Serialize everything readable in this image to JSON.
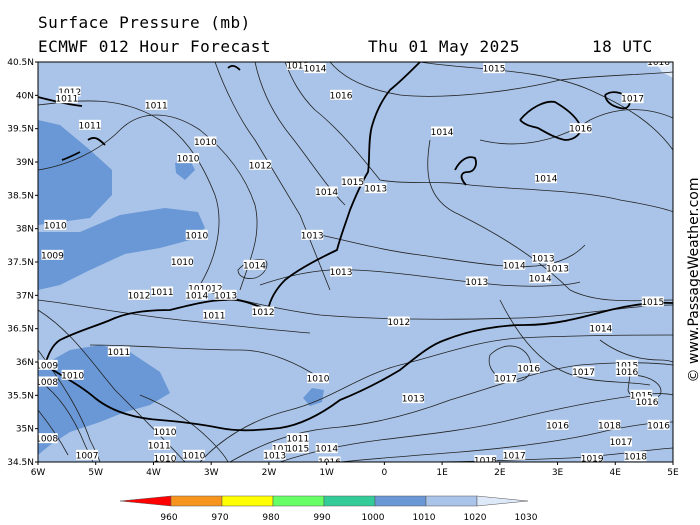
{
  "header": {
    "title": "Surface Pressure (mb)",
    "subtitle": "ECMWF 012 Hour Forecast",
    "date": "Thu 01 May 2025",
    "time": "18 UTC"
  },
  "site": "© www.PassageWeather.com",
  "map": {
    "lat_labels": [
      "40.5N",
      "40N",
      "39.5N",
      "39N",
      "38.5N",
      "38N",
      "37.5N",
      "37N",
      "36.5N",
      "36N",
      "35.5N",
      "35N",
      "34.5N"
    ],
    "lon_labels": [
      "6W",
      "5W",
      "4W",
      "3W",
      "2W",
      "1W",
      "0",
      "1E",
      "2E",
      "3E",
      "4E",
      "5E"
    ],
    "colors": {
      "sea_1010": "#6a98d6",
      "sea_1020": "#a9c4e8",
      "land_outline": "#000000",
      "isobar": "#222222"
    },
    "isobar_labels": [
      {
        "text": "1012",
        "lon": -5.45,
        "lat": 40.05
      },
      {
        "text": "1011",
        "lon": -5.5,
        "lat": 39.95
      },
      {
        "text": "1011",
        "lon": -5.1,
        "lat": 39.55
      },
      {
        "text": "1011",
        "lon": -3.95,
        "lat": 39.85
      },
      {
        "text": "1010",
        "lon": -3.1,
        "lat": 39.3
      },
      {
        "text": "1010",
        "lon": -3.4,
        "lat": 39.05
      },
      {
        "text": "1012",
        "lon": -2.15,
        "lat": 38.95
      },
      {
        "text": "1015",
        "lon": -1.5,
        "lat": 40.45
      },
      {
        "text": "1014",
        "lon": -1.2,
        "lat": 40.4
      },
      {
        "text": "1016",
        "lon": -0.75,
        "lat": 40.0
      },
      {
        "text": "1015",
        "lon": 1.9,
        "lat": 40.4
      },
      {
        "text": "1017",
        "lon": 4.3,
        "lat": 39.95
      },
      {
        "text": "1016",
        "lon": 3.4,
        "lat": 39.5
      },
      {
        "text": "1014",
        "lon": 1.0,
        "lat": 39.45
      },
      {
        "text": "1014",
        "lon": 2.8,
        "lat": 38.75
      },
      {
        "text": "1015",
        "lon": -0.55,
        "lat": 38.7
      },
      {
        "text": "1014",
        "lon": -1.0,
        "lat": 38.55
      },
      {
        "text": "1013",
        "lon": -0.15,
        "lat": 38.6
      },
      {
        "text": "1010",
        "lon": -5.7,
        "lat": 38.05
      },
      {
        "text": "1010",
        "lon": -3.25,
        "lat": 37.9
      },
      {
        "text": "1013",
        "lon": -1.25,
        "lat": 37.9
      },
      {
        "text": "1009",
        "lon": -5.75,
        "lat": 37.6
      },
      {
        "text": "1010",
        "lon": -3.5,
        "lat": 37.5
      },
      {
        "text": "1014",
        "lon": -2.25,
        "lat": 37.45
      },
      {
        "text": "1013",
        "lon": -0.75,
        "lat": 37.35
      },
      {
        "text": "1014",
        "lon": 2.25,
        "lat": 37.45
      },
      {
        "text": "1013",
        "lon": 2.75,
        "lat": 37.55
      },
      {
        "text": "1013",
        "lon": 3.0,
        "lat": 37.4
      },
      {
        "text": "1014",
        "lon": 2.7,
        "lat": 37.25
      },
      {
        "text": "1013",
        "lon": 1.6,
        "lat": 37.2
      },
      {
        "text": "1012",
        "lon": -4.25,
        "lat": 37.0
      },
      {
        "text": "1011",
        "lon": -3.85,
        "lat": 37.05
      },
      {
        "text": "1013",
        "lon": -3.2,
        "lat": 37.1
      },
      {
        "text": "1012",
        "lon": -3.0,
        "lat": 37.1
      },
      {
        "text": "1014",
        "lon": -3.25,
        "lat": 37.0
      },
      {
        "text": "1013",
        "lon": -2.75,
        "lat": 37.0
      },
      {
        "text": "1011",
        "lon": -2.95,
        "lat": 36.7
      },
      {
        "text": "1012",
        "lon": -2.1,
        "lat": 36.75
      },
      {
        "text": "1012",
        "lon": 0.25,
        "lat": 36.6
      },
      {
        "text": "1015",
        "lon": 4.65,
        "lat": 36.9
      },
      {
        "text": "1014",
        "lon": 3.75,
        "lat": 36.5
      },
      {
        "text": "1011",
        "lon": -4.6,
        "lat": 36.15
      },
      {
        "text": "1009",
        "lon": -5.85,
        "lat": 35.95
      },
      {
        "text": "1010",
        "lon": -5.4,
        "lat": 35.8
      },
      {
        "text": "1008",
        "lon": -5.85,
        "lat": 35.7
      },
      {
        "text": "1010",
        "lon": -1.15,
        "lat": 35.75
      },
      {
        "text": "1013",
        "lon": 0.5,
        "lat": 35.45
      },
      {
        "text": "1016",
        "lon": 2.5,
        "lat": 35.9
      },
      {
        "text": "1017",
        "lon": 2.1,
        "lat": 35.75
      },
      {
        "text": "1017",
        "lon": 3.45,
        "lat": 35.85
      },
      {
        "text": "1015",
        "lon": 4.2,
        "lat": 35.95
      },
      {
        "text": "1016",
        "lon": 4.2,
        "lat": 35.85
      },
      {
        "text": "1015",
        "lon": 4.45,
        "lat": 35.5
      },
      {
        "text": "1016",
        "lon": 4.55,
        "lat": 35.4
      },
      {
        "text": "1016",
        "lon": 3.0,
        "lat": 35.05
      },
      {
        "text": "1018",
        "lon": 3.9,
        "lat": 35.05
      },
      {
        "text": "1017",
        "lon": 4.1,
        "lat": 34.8
      },
      {
        "text": "1016",
        "lon": 4.75,
        "lat": 35.05
      },
      {
        "text": "1010",
        "lon": -3.8,
        "lat": 34.95
      },
      {
        "text": "1011",
        "lon": -3.9,
        "lat": 34.75
      },
      {
        "text": "1010",
        "lon": -3.3,
        "lat": 34.6
      },
      {
        "text": "1010",
        "lon": -3.8,
        "lat": 34.55
      },
      {
        "text": "1007",
        "lon": -5.15,
        "lat": 34.6
      },
      {
        "text": "1011",
        "lon": -1.5,
        "lat": 34.85
      },
      {
        "text": "1012",
        "lon": -1.75,
        "lat": 34.7
      },
      {
        "text": "1015",
        "lon": -1.5,
        "lat": 34.7
      },
      {
        "text": "1014",
        "lon": -1.0,
        "lat": 34.7
      },
      {
        "text": "1013",
        "lon": -1.9,
        "lat": 34.6
      },
      {
        "text": "1016",
        "lon": -0.95,
        "lat": 34.5
      },
      {
        "text": "1017",
        "lon": 2.25,
        "lat": 34.6
      },
      {
        "text": "1018",
        "lon": 1.75,
        "lat": 34.52
      },
      {
        "text": "1019",
        "lon": 3.6,
        "lat": 34.55
      },
      {
        "text": "1018",
        "lon": 4.35,
        "lat": 34.58
      },
      {
        "text": "1016",
        "lon": 4.75,
        "lat": 40.5
      },
      {
        "text": "1008",
        "lon": -5.85,
        "lat": 34.85
      }
    ]
  },
  "legend": {
    "ticks": [
      "960",
      "970",
      "980",
      "990",
      "1000",
      "1010",
      "1020",
      "1030"
    ],
    "colors": [
      "#ff0000",
      "#f7941d",
      "#ffff00",
      "#66ff66",
      "#33cc99",
      "#6a98d6",
      "#a9c4e8",
      "#dde8f8"
    ]
  }
}
